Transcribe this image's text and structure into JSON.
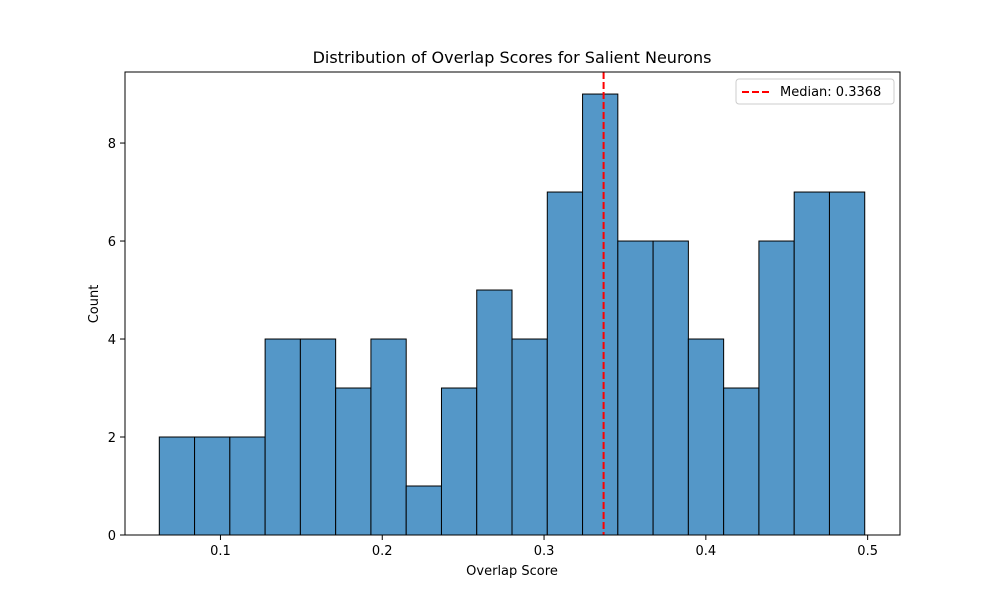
{
  "chart_data": {
    "type": "bar",
    "title": "Distribution of Overlap Scores for Salient Neurons",
    "xlabel": "Overlap Score",
    "ylabel": "Count",
    "xlim": [
      0.041,
      0.52
    ],
    "ylim": [
      0,
      9.45
    ],
    "xticks": [
      0.1,
      0.2,
      0.3,
      0.4,
      0.5
    ],
    "xtick_labels": [
      "0.1",
      "0.2",
      "0.3",
      "0.4",
      "0.5"
    ],
    "yticks": [
      0,
      2,
      4,
      6,
      8
    ],
    "ytick_labels": [
      "0",
      "2",
      "4",
      "6",
      "8"
    ],
    "bins": {
      "edges": [
        0.0622,
        0.084,
        0.1058,
        0.1276,
        0.1494,
        0.1712,
        0.193,
        0.2148,
        0.2366,
        0.2584,
        0.2802,
        0.302,
        0.3238,
        0.3456,
        0.3674,
        0.3892,
        0.411,
        0.4328,
        0.4546,
        0.4764,
        0.4982
      ],
      "counts": [
        2,
        2,
        2,
        4,
        4,
        3,
        4,
        1,
        3,
        5,
        4,
        7,
        9,
        6,
        6,
        4,
        3,
        6,
        7,
        7
      ]
    },
    "bar_color": "#5497c8",
    "bar_edge_color": "#000000",
    "median": {
      "value": 0.3368,
      "label": "Median: 0.3368",
      "color": "#ff0000",
      "style": "dashed"
    },
    "legend": {
      "position": "top-right"
    },
    "grid": false
  }
}
